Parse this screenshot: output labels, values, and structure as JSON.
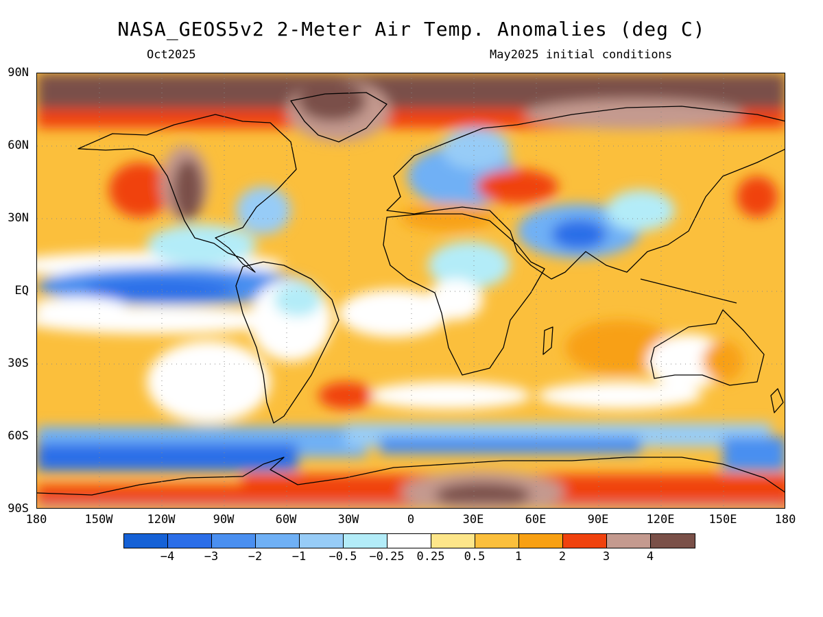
{
  "header": {
    "title": "NASA_GEOS5v2 2-Meter Air Temp. Anomalies (deg C)",
    "valid_month": "Oct2025",
    "init_conditions": "May2025 initial conditions"
  },
  "map": {
    "projection": "cylindrical equidistant",
    "variable": "2-meter air temperature anomaly",
    "units": "deg C",
    "lat_labels": [
      "90N",
      "60N",
      "30N",
      "EQ",
      "30S",
      "60S",
      "90S"
    ],
    "lon_labels": [
      "180",
      "150W",
      "120W",
      "90W",
      "60W",
      "30W",
      "0",
      "30E",
      "60E",
      "90E",
      "120E",
      "150E",
      "180"
    ],
    "lat_values": [
      90,
      60,
      30,
      0,
      -30,
      -60,
      -90
    ],
    "lon_values": [
      -180,
      -150,
      -120,
      -90,
      -60,
      -30,
      0,
      30,
      60,
      90,
      120,
      150,
      180
    ],
    "grid": "dotted",
    "regions": [
      {
        "area": "Arctic Ocean",
        "level": "4"
      },
      {
        "area": "Greenland",
        "level": "4"
      },
      {
        "area": "Northern Canada / Alaska",
        "level": "3"
      },
      {
        "area": "Western North America",
        "level": "4"
      },
      {
        "area": "Eastern USA",
        "level": "-1"
      },
      {
        "area": "Northwest Europe / Scandinavia",
        "level": "-1"
      },
      {
        "area": "North Africa",
        "level": "2"
      },
      {
        "area": "Central Asia / India",
        "level": "-1"
      },
      {
        "area": "Equatorial East Pacific",
        "level": "-4"
      },
      {
        "area": "Southern Ocean",
        "level": "-3"
      },
      {
        "area": "Antarctica interior",
        "level": "4"
      },
      {
        "area": "Antarctic coast",
        "level": "3"
      },
      {
        "area": "South America",
        "level": "-0.5"
      },
      {
        "area": "Central Africa",
        "level": "0.25"
      },
      {
        "area": "Australia",
        "level": "1"
      }
    ]
  },
  "colorbar": {
    "colors": [
      "#1561d6",
      "#2b6ee8",
      "#4a8ff0",
      "#6fb0f5",
      "#97ccf7",
      "#b3ecf8",
      "#ffffff",
      "#fde68a",
      "#fbbf3c",
      "#f8a013",
      "#f0420e",
      "#c49a8f",
      "#7a5048"
    ],
    "tick_labels": [
      "-4",
      "-3",
      "-2",
      "-1",
      "-0.5",
      "-0.25",
      "0.25",
      "0.5",
      "1",
      "2",
      "3",
      "4"
    ]
  }
}
